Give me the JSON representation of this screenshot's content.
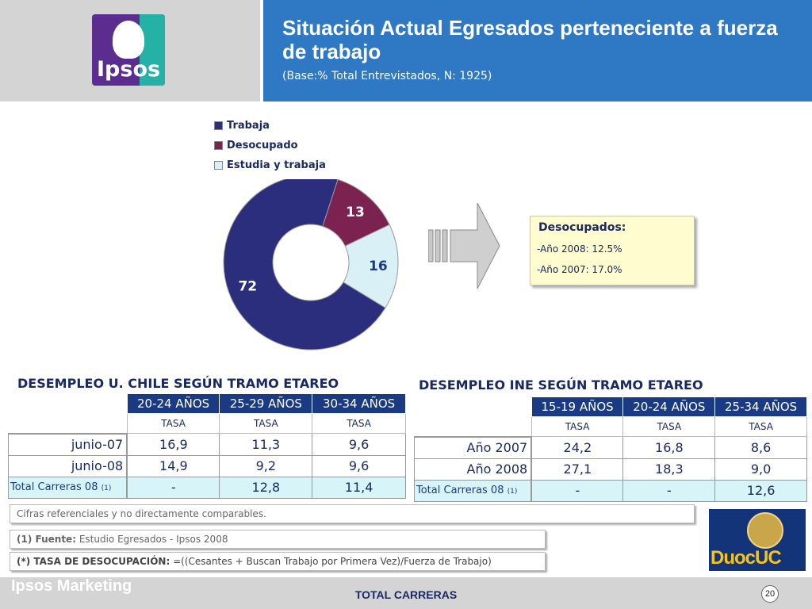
{
  "header": {
    "logo_text": "Ipsos",
    "title": "Situación Actual Egresados perteneciente a fuerza de trabajo",
    "subtitle": "(Base:% Total Entrevistados, N: 1925)"
  },
  "chart_data": {
    "type": "pie",
    "categories": [
      "Trabaja",
      "Desocupado",
      "Estudia y trabaja"
    ],
    "values": [
      72,
      13,
      16
    ],
    "colors": [
      "#2a2e7c",
      "#7b2250",
      "#d9f0f6"
    ],
    "donut": true,
    "legend_position": "top"
  },
  "note": {
    "title": "Desocupados:",
    "lines": [
      "-Año 2008: 12.5%",
      "-Año 2007: 17.0%"
    ]
  },
  "uchile": {
    "title": "DESEMPLEO U. CHILE SEGÚN TRAMO ETAREO",
    "headers": [
      "20-24 AÑOS",
      "25-29 AÑOS",
      "30-34 AÑOS"
    ],
    "tasa": [
      "TASA",
      "TASA",
      "TASA"
    ],
    "rows": [
      {
        "label": "junio-07",
        "values": [
          "16,9",
          "11,3",
          "9,6"
        ]
      },
      {
        "label": "junio-08",
        "values": [
          "14,9",
          "9,2",
          "9,6"
        ]
      }
    ],
    "total": {
      "label": "Total Carreras 08",
      "ref": "(1)",
      "values": [
        "-",
        "12,8",
        "11,4"
      ]
    }
  },
  "ine": {
    "title": "DESEMPLEO INE SEGÚN TRAMO ETAREO",
    "headers": [
      "15-19 AÑOS",
      "20-24 AÑOS",
      "25-34 AÑOS"
    ],
    "tasa": [
      "TASA",
      "TASA",
      "TASA"
    ],
    "rows": [
      {
        "label": "Año 2007",
        "values": [
          "24,2",
          "16,8",
          "8,6"
        ]
      },
      {
        "label": "Año 2008",
        "values": [
          "27,1",
          "18,3",
          "9,0"
        ]
      }
    ],
    "total": {
      "label": "Total Carreras 08",
      "ref": "(1)",
      "values": [
        "-",
        "-",
        "12,6"
      ]
    }
  },
  "footnotes": {
    "note": "Cifras referenciales y no directamente comparables.",
    "source_label": "(1) Fuente:",
    "source_text": "Estudio Egresados -  Ipsos 2008",
    "rate_label": "(*) TASA DE DESOCUPACIÓN:",
    "rate_text": "=((Cesantes + Buscan Trabajo por Primera Vez)/Fuerza de Trabajo)"
  },
  "duoc_logo": "DuocUC",
  "footer": {
    "brand": "Ipsos Marketing",
    "center": "TOTAL CARRERAS",
    "page": "20"
  }
}
